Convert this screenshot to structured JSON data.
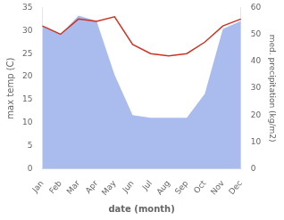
{
  "chart_data": {
    "type": "line",
    "xlabel": "date (month)",
    "ylabel": "max temp (C)",
    "y2label": "med. precipitation (kg/m2)",
    "categories": [
      "Jan",
      "Feb",
      "Mar",
      "Apr",
      "May",
      "Jun",
      "Jul",
      "Aug",
      "Sep",
      "Oct",
      "Nov",
      "Dec"
    ],
    "series": [
      {
        "type": "area",
        "color": "#aabbee",
        "axis": "y2",
        "values": [
          53,
          50,
          57,
          55,
          35,
          20,
          19,
          19,
          19,
          28,
          52,
          55
        ]
      },
      {
        "type": "line",
        "color": "#cc3322",
        "values": [
          31.0,
          29.2,
          32.5,
          32.0,
          33.0,
          27.0,
          25.0,
          24.5,
          25.0,
          27.5,
          31.0,
          32.5
        ]
      }
    ],
    "ylim": [
      0,
      35
    ],
    "yticks": [
      0,
      5,
      10,
      15,
      20,
      25,
      30,
      35
    ],
    "y2lim": [
      0,
      60
    ],
    "y2ticks": [
      0,
      10,
      20,
      30,
      40,
      50,
      60
    ],
    "grid": false
  }
}
